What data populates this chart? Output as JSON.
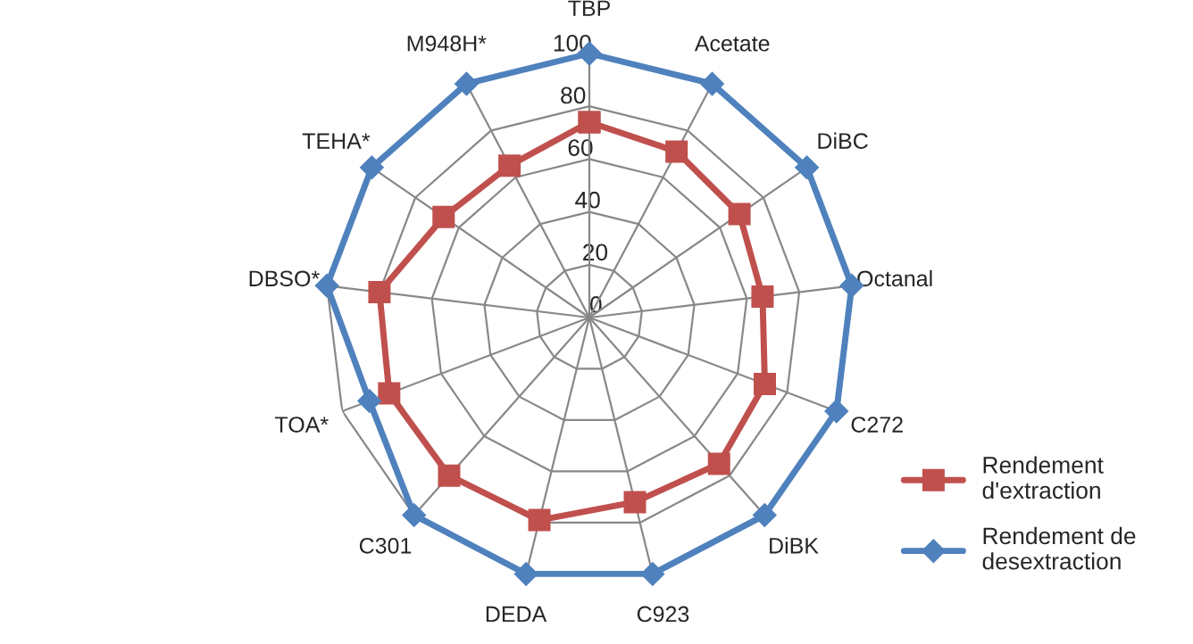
{
  "chart_data": {
    "type": "radar",
    "categories": [
      "TBP",
      "Acetate",
      "DiBC",
      "Octanal",
      "C272",
      "DiBK",
      "C923",
      "DEDA",
      "C301",
      "TOA*",
      "DBSO*",
      "TEHA*",
      "M948H*"
    ],
    "series": [
      {
        "name": "Rendement d'extraction",
        "color": "#c0504d",
        "marker": "square",
        "values": [
          74,
          71,
          69,
          66,
          71,
          74,
          72,
          79,
          80,
          81,
          80,
          67,
          65
        ]
      },
      {
        "name": "Rendement de desextraction",
        "color": "#4f81bd",
        "marker": "diamond",
        "values": [
          100,
          100,
          100,
          100,
          100,
          100,
          100,
          100,
          100,
          89,
          100,
          100,
          100
        ]
      }
    ],
    "ylim": [
      0,
      100
    ],
    "yticks": [
      0,
      20,
      40,
      60,
      80,
      100
    ],
    "grid": true,
    "legend": "right"
  }
}
